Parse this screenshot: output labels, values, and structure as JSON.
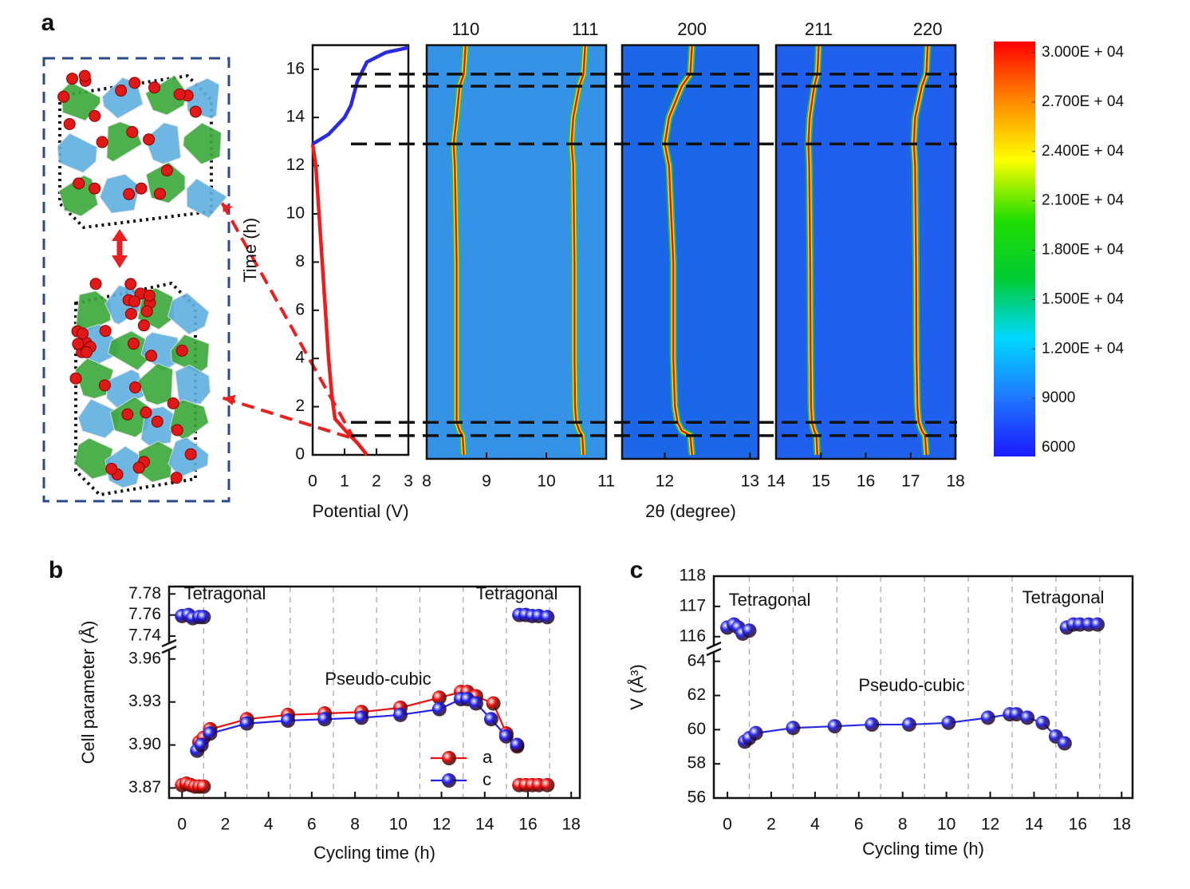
{
  "panel_labels": [
    "a",
    "b",
    "c"
  ],
  "chart_data": [
    {
      "type": "line",
      "xlabel": "Potential (V)",
      "ylabel": "Time (h)",
      "xlim": [
        0,
        3
      ],
      "xticks": [
        0,
        1,
        2,
        3
      ],
      "ylim": [
        0,
        17
      ],
      "yticks": [
        0,
        2,
        4,
        6,
        8,
        10,
        12,
        14,
        16
      ],
      "series": [
        {
          "color": "#ee1c1c",
          "x": [
            1.7,
            1.4,
            1.1,
            0.7,
            0.6,
            0.5,
            0.4,
            0.3,
            0.2,
            0.1,
            0
          ],
          "values": [
            0,
            0.5,
            0.9,
            1.5,
            2.5,
            4,
            6,
            8,
            10,
            12,
            12.9
          ]
        },
        {
          "color": "#2a2ae0",
          "x": [
            0,
            0.5,
            1,
            1.2,
            1.4,
            1.7,
            2.3,
            3
          ],
          "values": [
            12.9,
            13.3,
            14,
            14.5,
            15.5,
            16.3,
            16.7,
            16.9
          ]
        }
      ]
    },
    {
      "type": "xrd-map",
      "xlabel": "2θ (degree)",
      "ylim": [
        0,
        17
      ],
      "hlines": [
        0.8,
        1.35,
        12.9,
        15.3,
        15.8
      ],
      "panels": [
        {
          "xlim": [
            8,
            11
          ],
          "xticks": [
            8,
            9,
            10,
            11
          ],
          "peaks": [
            {
              "name": "110",
              "x": [
                8.62,
                8.6,
                8.55,
                8.5,
                8.5,
                8.5,
                8.5,
                8.47,
                8.45,
                8.5,
                8.55,
                8.62,
                8.65
              ],
              "values": [
                0,
                0.8,
                1.0,
                1.35,
                2,
                4,
                8,
                12,
                12.9,
                14,
                15.3,
                15.8,
                17
              ]
            },
            {
              "name": "111",
              "x": [
                10.62,
                10.6,
                10.55,
                10.5,
                10.48,
                10.47,
                10.47,
                10.45,
                10.42,
                10.45,
                10.55,
                10.62,
                10.65
              ],
              "values": [
                0,
                0.8,
                1.0,
                1.35,
                2,
                4,
                8,
                12,
                12.9,
                14,
                15.3,
                15.8,
                17
              ]
            }
          ]
        },
        {
          "xlim": [
            11.5,
            13.1
          ],
          "xticks": [
            12,
            13
          ],
          "peaks": [
            {
              "name": "200",
              "x": [
                12.32,
                12.3,
                12.2,
                12.15,
                12.12,
                12.1,
                12.1,
                12.05,
                12.0,
                12.05,
                12.2,
                12.3,
                12.32
              ],
              "values": [
                0,
                0.8,
                1.0,
                1.35,
                2,
                4,
                8,
                12,
                12.9,
                14,
                15.3,
                15.8,
                17
              ]
            }
          ]
        },
        {
          "xlim": [
            14,
            18
          ],
          "xticks": [
            14,
            15,
            16,
            17,
            18
          ],
          "peaks": [
            {
              "name": "211",
              "x": [
                14.92,
                14.9,
                14.85,
                14.8,
                14.78,
                14.77,
                14.76,
                14.74,
                14.72,
                14.75,
                14.85,
                14.92,
                14.95
              ],
              "values": [
                0,
                0.8,
                1.0,
                1.35,
                2,
                4,
                8,
                12,
                12.9,
                14,
                15.3,
                15.8,
                17
              ]
            },
            {
              "name": "220",
              "x": [
                17.35,
                17.32,
                17.25,
                17.18,
                17.15,
                17.13,
                17.12,
                17.1,
                17.07,
                17.1,
                17.25,
                17.35,
                17.38
              ],
              "values": [
                0,
                0.8,
                1.0,
                1.35,
                2,
                4,
                8,
                12,
                12.9,
                14,
                15.3,
                15.8,
                17
              ]
            }
          ]
        }
      ],
      "colorbar": {
        "lim": [
          5470,
          30680
        ],
        "colors": [
          "#1a1aff",
          "#1e78ff",
          "#00d8ff",
          "#00cc33",
          "#22dd00",
          "#ffff00",
          "#ff8800",
          "#ff0000"
        ],
        "ticks": [
          6000,
          9000,
          {
            "value": 12000,
            "label": "1.200E + 04"
          },
          {
            "value": 15000,
            "label": "1.500E + 04"
          },
          {
            "value": 18000,
            "label": "1.800E + 04"
          },
          {
            "value": 21000,
            "label": "2.100E + 04"
          },
          {
            "value": 24000,
            "label": "2.400E + 04"
          },
          {
            "value": 27000,
            "label": "2.700E + 04"
          },
          {
            "value": 30000,
            "label": "3.000E + 04"
          }
        ]
      }
    },
    {
      "type": "line",
      "xlabel": "Cycling time (h)",
      "ylabel": "Cell parameter (Å)",
      "markers": true,
      "xlim": [
        -0.6,
        18.4
      ],
      "xticks": [
        0,
        2,
        4,
        6,
        8,
        10,
        12,
        14,
        16,
        18
      ],
      "vlines": [
        1,
        3,
        5,
        7,
        9,
        11,
        13,
        15,
        17
      ],
      "legend": "lower right",
      "segments": [
        {
          "ylim": [
            3.863,
            3.966
          ],
          "yticks": [
            3.87,
            {
              "value": 3.9,
              "label": "3.90"
            },
            3.93,
            3.96
          ]
        },
        {
          "ylim": [
            7.734,
            7.787
          ],
          "yticks": [
            7.74,
            7.76,
            7.78
          ]
        }
      ],
      "annotations": [
        "Tetragonal",
        "Tetragonal",
        "Pseudo-cubic"
      ],
      "series": [
        {
          "name": "a",
          "color": "#ee1111",
          "x": [
            0.8,
            1.0,
            1.3,
            3.0,
            4.9,
            6.6,
            8.3,
            10.1,
            11.9,
            12.9,
            13.2,
            13.6,
            14.4,
            15.0,
            15.5
          ],
          "values": [
            3.902,
            3.905,
            3.911,
            3.918,
            3.921,
            3.922,
            3.923,
            3.926,
            3.933,
            3.937,
            3.937,
            3.934,
            3.929,
            3.908,
            3.899
          ]
        },
        {
          "name": "c",
          "color": "#2222ee",
          "x": [
            0.7,
            0.9,
            1.3,
            3.0,
            4.9,
            6.6,
            8.3,
            10.1,
            11.9,
            12.9,
            13.2,
            13.6,
            14.3,
            15.0,
            15.5
          ],
          "values": [
            3.896,
            3.9,
            3.908,
            3.915,
            3.917,
            3.918,
            3.919,
            3.921,
            3.925,
            3.932,
            3.932,
            3.929,
            3.918,
            3.906,
            3.9
          ]
        },
        {
          "color": "#ee1111",
          "line": false,
          "x": [
            0,
            0.2,
            0.4,
            0.6,
            0.8,
            1.0,
            15.6,
            15.9,
            16.2,
            16.5,
            16.9
          ],
          "values": [
            3.872,
            3.873,
            3.872,
            3.871,
            3.871,
            3.871,
            3.872,
            3.872,
            3.872,
            3.872,
            3.872
          ]
        },
        {
          "color": "#2222ee",
          "line": false,
          "x": [
            0,
            0.3,
            0.5,
            0.8,
            1.0,
            15.6,
            15.9,
            16.2,
            16.5,
            16.9
          ],
          "values": [
            7.759,
            7.76,
            7.757,
            7.758,
            7.758,
            7.76,
            7.76,
            7.759,
            7.759,
            7.758
          ]
        }
      ]
    },
    {
      "type": "line",
      "xlabel": "Cycling time (h)",
      "ylabel": "V (Å³)",
      "markers": true,
      "xlim": [
        -0.62,
        18.5
      ],
      "xticks": [
        0,
        2,
        4,
        6,
        8,
        10,
        12,
        14,
        16,
        18
      ],
      "vlines": [
        1,
        3,
        5,
        7,
        9,
        11,
        13,
        15,
        17
      ],
      "segments": [
        {
          "ylim": [
            56,
            64.5
          ],
          "yticks": [
            56,
            58,
            60,
            62,
            64
          ]
        },
        {
          "ylim": [
            115.73,
            118
          ],
          "yticks": [
            116,
            117,
            118
          ]
        }
      ],
      "annotations": [
        "Tetragonal",
        "Tetragonal",
        "Pseudo-cubic"
      ],
      "series": [
        {
          "color": "#2a2ae6",
          "x": [
            0.8,
            1.0,
            1.3,
            3.0,
            4.9,
            6.6,
            8.3,
            10.1,
            11.9,
            12.9,
            13.2,
            13.7,
            14.4,
            15.0,
            15.4
          ],
          "values": [
            59.3,
            59.5,
            59.8,
            60.1,
            60.2,
            60.3,
            60.3,
            60.4,
            60.7,
            60.9,
            60.9,
            60.7,
            60.4,
            59.6,
            59.2
          ]
        },
        {
          "color": "#2a2ae6",
          "line": false,
          "x": [
            0,
            0.3,
            0.5,
            0.7,
            1.0,
            15.5,
            15.8,
            16.1,
            16.5,
            16.9
          ],
          "values": [
            116.3,
            116.4,
            116.3,
            116.1,
            116.2,
            116.3,
            116.4,
            116.4,
            116.4,
            116.4
          ]
        }
      ]
    }
  ]
}
